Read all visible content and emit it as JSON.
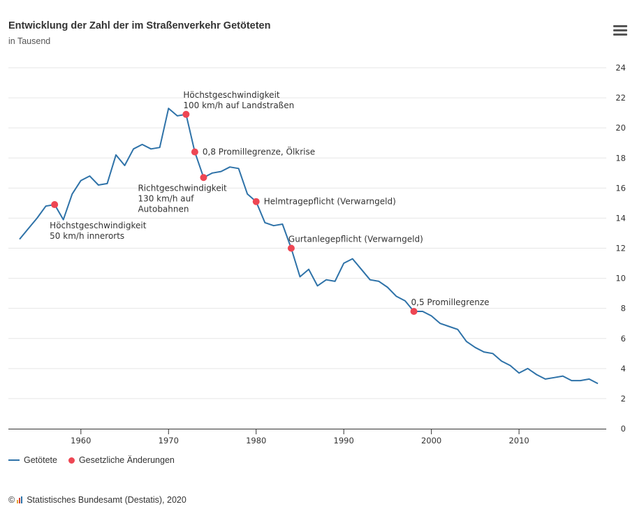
{
  "header": {
    "title": "Entwicklung der Zahl der im Straßenverkehr Getöteten",
    "subtitle": "in Tausend",
    "menu_icon": "hamburger-menu-icon"
  },
  "legend": {
    "series_label": "Getötete",
    "events_label": "Gesetzliche Änderungen"
  },
  "credit": {
    "copyright": "©",
    "text": "Statistisches Bundesamt (Destatis), 2020"
  },
  "colors": {
    "line": "#2e72a8",
    "marker": "#ee4653",
    "grid": "#e6e6e6",
    "axis": "#333333",
    "text": "#333333"
  },
  "chart_data": {
    "type": "line",
    "title": "Entwicklung der Zahl der im Straßenverkehr Getöteten",
    "subtitle": "in Tausend",
    "xlim": [
      1952,
      2019
    ],
    "ylim": [
      0,
      24
    ],
    "x_ticks": [
      1960,
      1970,
      1980,
      1990,
      2000,
      2010
    ],
    "y_ticks": [
      0,
      2,
      4,
      6,
      8,
      10,
      12,
      14,
      16,
      18,
      20,
      22,
      24
    ],
    "y_axis_side": "right",
    "grid": true,
    "legend_position": "bottom-left",
    "series": [
      {
        "name": "Getötete",
        "x": [
          1953,
          1954,
          1955,
          1956,
          1957,
          1958,
          1959,
          1960,
          1961,
          1962,
          1963,
          1964,
          1965,
          1966,
          1967,
          1968,
          1969,
          1970,
          1971,
          1972,
          1973,
          1974,
          1975,
          1976,
          1977,
          1978,
          1979,
          1980,
          1981,
          1982,
          1983,
          1984,
          1985,
          1986,
          1987,
          1988,
          1989,
          1990,
          1991,
          1992,
          1993,
          1994,
          1995,
          1996,
          1997,
          1998,
          1999,
          2000,
          2001,
          2002,
          2003,
          2004,
          2005,
          2006,
          2007,
          2008,
          2009,
          2010,
          2011,
          2012,
          2013,
          2014,
          2015,
          2016,
          2017,
          2018,
          2019
        ],
        "y": [
          12.6,
          13.3,
          14.0,
          14.8,
          14.9,
          13.9,
          15.6,
          16.5,
          16.8,
          16.2,
          16.3,
          18.2,
          17.5,
          18.6,
          18.9,
          18.6,
          18.7,
          21.3,
          20.8,
          20.9,
          18.4,
          16.7,
          17.0,
          17.1,
          17.4,
          17.3,
          15.6,
          15.1,
          13.7,
          13.5,
          13.6,
          12.0,
          10.1,
          10.6,
          9.5,
          9.9,
          9.8,
          11.0,
          11.3,
          10.6,
          9.9,
          9.8,
          9.4,
          8.8,
          8.5,
          7.8,
          7.8,
          7.5,
          7.0,
          6.8,
          6.6,
          5.8,
          5.4,
          5.1,
          5.0,
          4.5,
          4.2,
          3.7,
          4.0,
          3.6,
          3.3,
          3.4,
          3.5,
          3.2,
          3.2,
          3.3,
          3.0
        ]
      }
    ],
    "events": [
      {
        "x": 1957,
        "y": 14.9,
        "label": [
          "Höchstgeschwindigkeit",
          "50 km/h innerorts"
        ],
        "anchor": "below-right"
      },
      {
        "x": 1972,
        "y": 20.9,
        "label": [
          "Höchstgeschwindigkeit",
          "100 km/h auf Landstraßen"
        ],
        "anchor": "above-right"
      },
      {
        "x": 1973,
        "y": 18.4,
        "label": [
          "0,8 Promillegrenze, Ölkrise"
        ],
        "anchor": "right"
      },
      {
        "x": 1974,
        "y": 16.7,
        "label": [
          "Richtgeschwindigkeit",
          "130 km/h auf",
          "Autobahnen"
        ],
        "anchor": "below-left"
      },
      {
        "x": 1980,
        "y": 15.1,
        "label": [
          "Helmtragepflicht (Verwarngeld)"
        ],
        "anchor": "right"
      },
      {
        "x": 1984,
        "y": 12.0,
        "label": [
          "Gurtanlegepflicht (Verwarngeld)"
        ],
        "anchor": "above-right"
      },
      {
        "x": 1998,
        "y": 7.8,
        "label": [
          "0,5 Promillegrenze"
        ],
        "anchor": "above-right"
      }
    ]
  }
}
